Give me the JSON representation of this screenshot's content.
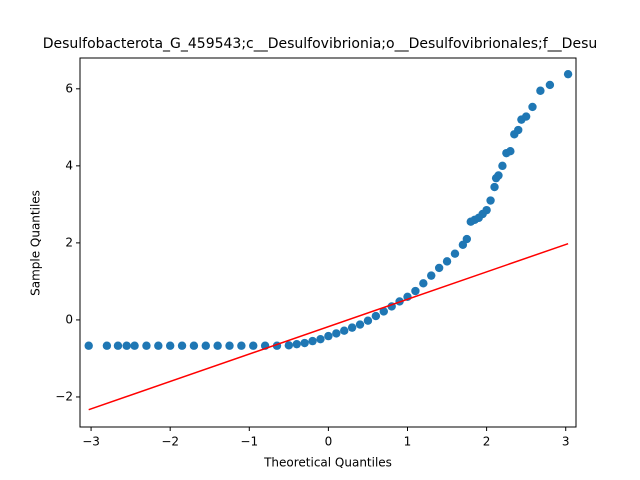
{
  "chart_data": {
    "type": "scatter",
    "title": "Desulfobacterota_G_459543;c__Desulfovibrionia;o__Desulfovibrionales;f__Desu",
    "x_label": "Theoretical Quantiles",
    "y_label": "Sample Quantiles",
    "xlim": [
      -3.14,
      3.13
    ],
    "ylim": [
      -2.78,
      6.8
    ],
    "xticks": [
      {
        "value": -3,
        "label": "−3"
      },
      {
        "value": -2,
        "label": "−2"
      },
      {
        "value": -1,
        "label": "−1"
      },
      0,
      1,
      2,
      3
    ],
    "yticks": [
      {
        "value": -2,
        "label": "−2"
      },
      0,
      2,
      4,
      6
    ],
    "series": [
      {
        "type": "scatter",
        "color": "#1f77b4",
        "x": [
          -3.03,
          -2.8,
          -2.66,
          -2.55,
          -2.45,
          -2.3,
          -2.15,
          -2.0,
          -1.85,
          -1.7,
          -1.55,
          -1.4,
          -1.25,
          -1.1,
          -0.95,
          -0.8,
          -0.65,
          -0.5,
          -0.4,
          -0.3,
          -0.2,
          -0.1,
          0,
          0.1,
          0.2,
          0.3,
          0.4,
          0.5,
          0.6,
          0.7,
          0.8,
          0.9,
          1.0,
          1.1,
          1.2,
          1.3,
          1.4,
          1.5,
          1.6,
          1.7,
          1.75,
          1.8,
          1.85,
          1.9,
          1.95,
          2.0,
          2.05,
          2.1,
          2.12,
          2.15,
          2.2,
          2.25,
          2.3,
          2.35,
          2.4,
          2.44,
          2.5,
          2.58,
          2.68,
          2.8,
          3.03
        ],
        "values": [
          -0.67,
          -0.67,
          -0.67,
          -0.67,
          -0.67,
          -0.67,
          -0.67,
          -0.67,
          -0.67,
          -0.67,
          -0.67,
          -0.67,
          -0.67,
          -0.67,
          -0.67,
          -0.67,
          -0.67,
          -0.66,
          -0.63,
          -0.6,
          -0.55,
          -0.5,
          -0.42,
          -0.35,
          -0.28,
          -0.2,
          -0.12,
          -0.02,
          0.1,
          0.22,
          0.35,
          0.48,
          0.6,
          0.75,
          0.95,
          1.15,
          1.35,
          1.52,
          1.72,
          1.95,
          2.1,
          2.55,
          2.6,
          2.65,
          2.75,
          2.85,
          3.1,
          3.45,
          3.68,
          3.75,
          4.0,
          4.33,
          4.38,
          4.82,
          4.93,
          5.2,
          5.28,
          5.53,
          5.95,
          6.1,
          6.38
        ]
      },
      {
        "type": "line",
        "color": "#ff0000",
        "x": [
          -3.03,
          3.03
        ],
        "values": [
          -2.33,
          1.98
        ]
      }
    ]
  }
}
